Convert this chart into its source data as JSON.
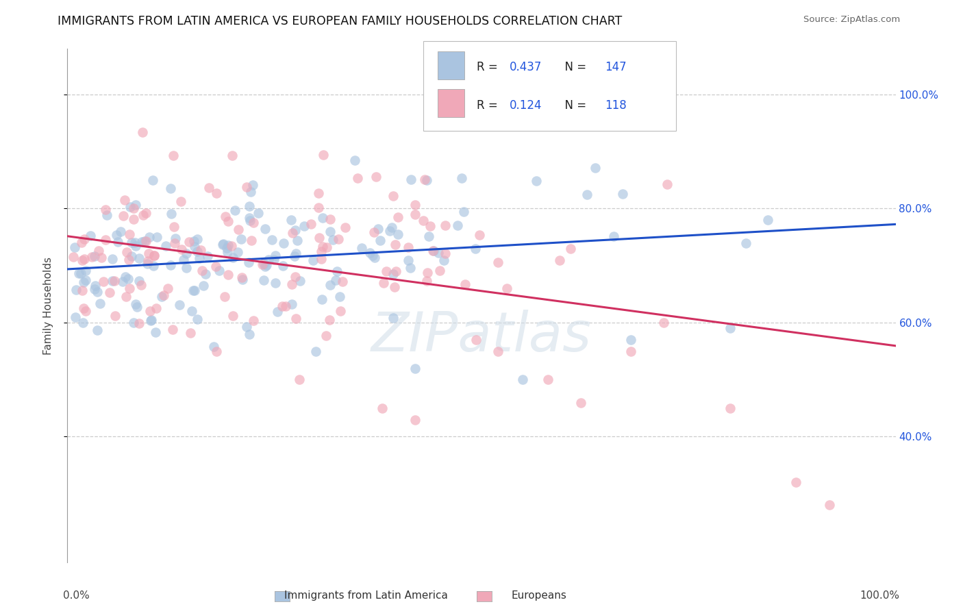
{
  "title": "IMMIGRANTS FROM LATIN AMERICA VS EUROPEAN FAMILY HOUSEHOLDS CORRELATION CHART",
  "source": "Source: ZipAtlas.com",
  "ylabel": "Family Households",
  "watermark": "ZIPatlas",
  "blue_R": "0.437",
  "blue_N": 147,
  "pink_R": "0.124",
  "pink_N": 118,
  "blue_label": "Immigrants from Latin America",
  "pink_label": "Europeans",
  "blue_color": "#aac4e0",
  "pink_color": "#f0a8b8",
  "blue_line_color": "#1e50c8",
  "pink_line_color": "#d03060",
  "legend_color": "#2255dd",
  "background_color": "#ffffff",
  "grid_color": "#cccccc",
  "title_color": "#111111",
  "yticks": [
    0.4,
    0.6,
    0.8,
    1.0
  ],
  "ytick_labels": [
    "40.0%",
    "60.0%",
    "80.0%",
    "100.0%"
  ],
  "xlim": [
    0.0,
    1.0
  ],
  "ylim": [
    0.18,
    1.08
  ]
}
